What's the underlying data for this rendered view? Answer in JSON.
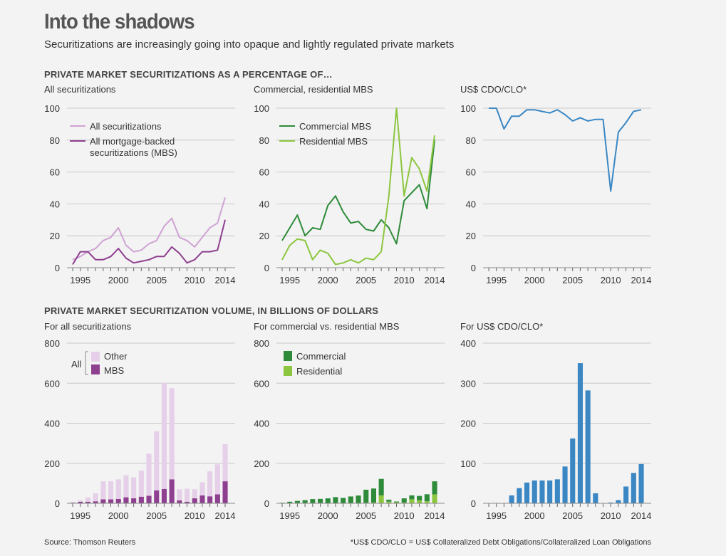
{
  "title": "Into the shadows",
  "subtitle": "Securitizations are increasingly going into opaque and lightly regulated private markets",
  "section1": "PRIVATE MARKET SECURITIZATIONS AS A PERCENTAGE OF…",
  "section2": "PRIVATE MARKET SECURITIZATION VOLUME, IN BILLIONS OF DOLLARS",
  "source": "Source: Thomson Reuters",
  "footnote": "*US$ CDO/CLO = US$ Collateralized Debt Obligations/Collateralized Loan Obligations",
  "colors": {
    "all_sec": "#cfa2d4",
    "mbs": "#8e3f8f",
    "other_bar": "#e6cfe8",
    "commercial": "#2e8b3a",
    "residential": "#8cc63f",
    "cdo": "#3a87c4",
    "grid": "#c8c8c8",
    "axis": "#666666"
  },
  "chart_data": [
    {
      "id": "pct_all",
      "type": "line",
      "title": "All securitizations",
      "ylim": [
        0,
        100
      ],
      "yticks": [
        0,
        20,
        40,
        60,
        80,
        100
      ],
      "xlim": [
        1994,
        2014
      ],
      "xticks": [
        1995,
        2000,
        2005,
        2010,
        2014
      ],
      "x": [
        1994,
        1995,
        1996,
        1997,
        1998,
        1999,
        2000,
        2001,
        2002,
        2003,
        2004,
        2005,
        2006,
        2007,
        2008,
        2009,
        2010,
        2011,
        2012,
        2013,
        2014
      ],
      "series": [
        {
          "name": "All securitizations",
          "color": "all_sec",
          "values": [
            5,
            7,
            10,
            12,
            17,
            19,
            25,
            14,
            10,
            11,
            15,
            17,
            26,
            31,
            19,
            17,
            13,
            19,
            25,
            28,
            44
          ]
        },
        {
          "name": "All mortgage-backed securitizations (MBS)",
          "color": "mbs",
          "values": [
            2,
            10,
            10,
            5,
            5,
            7,
            12,
            6,
            3,
            4,
            5,
            7,
            7,
            13,
            9,
            3,
            5,
            10,
            10,
            11,
            30
          ]
        }
      ],
      "legend": [
        "All securitizations",
        "All mortgage-backed",
        "securitizations (MBS)"
      ]
    },
    {
      "id": "pct_mbs",
      "type": "line",
      "title": "Commercial, residential MBS",
      "ylim": [
        0,
        100
      ],
      "yticks": [
        0,
        20,
        40,
        60,
        80,
        100
      ],
      "xlim": [
        1994,
        2014
      ],
      "xticks": [
        1995,
        2000,
        2005,
        2010,
        2014
      ],
      "x": [
        1994,
        1995,
        1996,
        1997,
        1998,
        1999,
        2000,
        2001,
        2002,
        2003,
        2004,
        2005,
        2006,
        2007,
        2008,
        2009,
        2010,
        2011,
        2012,
        2013,
        2014
      ],
      "series": [
        {
          "name": "Commercial MBS",
          "color": "commercial",
          "values": [
            17,
            25,
            33,
            20,
            25,
            24,
            39,
            45,
            35,
            28,
            29,
            24,
            23,
            30,
            25,
            15,
            42,
            47,
            52,
            37,
            80
          ]
        },
        {
          "name": "Residential MBS",
          "color": "residential",
          "values": [
            5,
            14,
            18,
            17,
            5,
            11,
            9,
            2,
            3,
            5,
            3,
            6,
            5,
            10,
            45,
            100,
            45,
            69,
            62,
            48,
            83
          ]
        }
      ],
      "legend": [
        "Commercial MBS",
        "Residential MBS"
      ]
    },
    {
      "id": "pct_cdo",
      "type": "line",
      "title": "US$ CDO/CLO*",
      "ylim": [
        0,
        100
      ],
      "yticks": [
        0,
        20,
        40,
        60,
        80,
        100
      ],
      "xlim": [
        1994,
        2014
      ],
      "xticks": [
        1995,
        2000,
        2005,
        2010,
        2014
      ],
      "x": [
        1994,
        1995,
        1996,
        1997,
        1998,
        1999,
        2000,
        2001,
        2002,
        2003,
        2004,
        2005,
        2006,
        2007,
        2008,
        2009,
        2010,
        2011,
        2012,
        2013,
        2014
      ],
      "series": [
        {
          "name": "US$ CDO/CLO",
          "color": "cdo",
          "values": [
            100,
            100,
            87,
            95,
            95,
            99,
            99,
            98,
            97,
            99,
            96,
            92,
            94,
            92,
            93,
            93,
            48,
            85,
            91,
            98,
            99
          ]
        }
      ]
    },
    {
      "id": "vol_all",
      "type": "stacked_bar",
      "title": "For all securitizations",
      "ylim": [
        0,
        800
      ],
      "yticks": [
        0,
        200,
        400,
        600,
        800
      ],
      "xlim": [
        1994,
        2014
      ],
      "xticks": [
        1995,
        2000,
        2005,
        2010,
        2014
      ],
      "x": [
        1994,
        1995,
        1996,
        1997,
        1998,
        1999,
        2000,
        2001,
        2002,
        2003,
        2004,
        2005,
        2006,
        2007,
        2008,
        2009,
        2010,
        2011,
        2012,
        2013,
        2014
      ],
      "series": [
        {
          "name": "MBS",
          "color": "mbs",
          "values": [
            3,
            8,
            8,
            10,
            20,
            20,
            22,
            30,
            25,
            33,
            38,
            65,
            72,
            120,
            15,
            8,
            25,
            40,
            35,
            45,
            110
          ]
        },
        {
          "name": "Other",
          "color": "other_bar",
          "values": [
            5,
            7,
            22,
            40,
            90,
            90,
            98,
            110,
            105,
            130,
            210,
            295,
            530,
            455,
            55,
            65,
            45,
            65,
            125,
            150,
            185
          ]
        }
      ],
      "legend_group": "All",
      "legend": [
        "Other",
        "MBS"
      ]
    },
    {
      "id": "vol_mbs",
      "type": "stacked_bar",
      "title": "For commercial vs. residential MBS",
      "ylim": [
        0,
        800
      ],
      "yticks": [
        0,
        200,
        400,
        600,
        800
      ],
      "xlim": [
        1994,
        2014
      ],
      "xticks": [
        1995,
        2000,
        2005,
        2010,
        2014
      ],
      "x": [
        1994,
        1995,
        1996,
        1997,
        1998,
        1999,
        2000,
        2001,
        2002,
        2003,
        2004,
        2005,
        2006,
        2007,
        2008,
        2009,
        2010,
        2011,
        2012,
        2013,
        2014
      ],
      "series": [
        {
          "name": "Residential",
          "color": "residential",
          "values": [
            0,
            1,
            2,
            2,
            1,
            2,
            2,
            1,
            1,
            2,
            1,
            3,
            4,
            40,
            8,
            5,
            4,
            20,
            15,
            10,
            45
          ]
        },
        {
          "name": "Commercial",
          "color": "commercial",
          "values": [
            3,
            7,
            10,
            14,
            20,
            20,
            23,
            30,
            26,
            32,
            38,
            65,
            70,
            82,
            10,
            4,
            21,
            20,
            22,
            35,
            65
          ]
        }
      ],
      "legend": [
        "Commercial",
        "Residential"
      ]
    },
    {
      "id": "vol_cdo",
      "type": "bar",
      "title": "For US$ CDO/CLO*",
      "ylim": [
        0,
        400
      ],
      "yticks": [
        0,
        100,
        200,
        300,
        400
      ],
      "xlim": [
        1994,
        2014
      ],
      "xticks": [
        1995,
        2000,
        2005,
        2010,
        2014
      ],
      "x": [
        1994,
        1995,
        1996,
        1997,
        1998,
        1999,
        2000,
        2001,
        2002,
        2003,
        2004,
        2005,
        2006,
        2007,
        2008,
        2009,
        2010,
        2011,
        2012,
        2013,
        2014
      ],
      "series": [
        {
          "name": "US$ CDO/CLO",
          "color": "cdo",
          "values": [
            0,
            0,
            0,
            20,
            38,
            52,
            57,
            57,
            57,
            60,
            92,
            162,
            350,
            282,
            25,
            0,
            2,
            8,
            42,
            76,
            98
          ]
        }
      ]
    }
  ]
}
